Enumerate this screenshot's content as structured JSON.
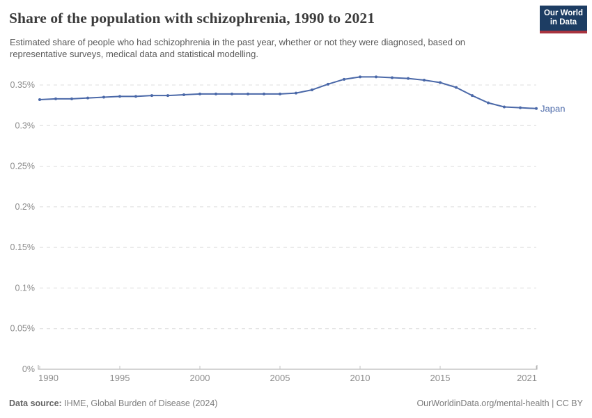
{
  "header": {
    "title": "Share of the population with schizophrenia, 1990 to 2021",
    "subtitle": "Estimated share of people who had schizophrenia in the past year, whether or not they were diagnosed, based on representative surveys, medical data and statistical modelling.",
    "logo": {
      "line1": "Our World",
      "line2": "in Data",
      "background_color": "#1d3d63",
      "stripe_color": "#a8333f"
    }
  },
  "chart_data": {
    "type": "line",
    "title": "Share of the population with schizophrenia, 1990 to 2021",
    "xlabel": "",
    "ylabel": "",
    "unit": "%",
    "grid": true,
    "legend_position": "end-of-line",
    "xlim": [
      1990,
      2021
    ],
    "ylim": [
      0,
      0.35
    ],
    "x": [
      1990,
      1991,
      1992,
      1993,
      1994,
      1995,
      1996,
      1997,
      1998,
      1999,
      2000,
      2001,
      2002,
      2003,
      2004,
      2005,
      2006,
      2007,
      2008,
      2009,
      2010,
      2011,
      2012,
      2013,
      2014,
      2015,
      2016,
      2017,
      2018,
      2019,
      2020,
      2021
    ],
    "series": [
      {
        "name": "Japan",
        "color": "#4a68a8",
        "values": [
          0.332,
          0.333,
          0.333,
          0.334,
          0.335,
          0.336,
          0.336,
          0.337,
          0.337,
          0.338,
          0.339,
          0.339,
          0.339,
          0.339,
          0.339,
          0.339,
          0.34,
          0.344,
          0.351,
          0.357,
          0.36,
          0.36,
          0.359,
          0.358,
          0.356,
          0.353,
          0.347,
          0.337,
          0.328,
          0.323,
          0.322,
          0.321
        ]
      }
    ],
    "yticks": [
      {
        "value": 0,
        "label": "0%"
      },
      {
        "value": 0.05,
        "label": "0.05%"
      },
      {
        "value": 0.1,
        "label": "0.1%"
      },
      {
        "value": 0.15,
        "label": "0.15%"
      },
      {
        "value": 0.2,
        "label": "0.2%"
      },
      {
        "value": 0.25,
        "label": "0.25%"
      },
      {
        "value": 0.3,
        "label": "0.3%"
      },
      {
        "value": 0.35,
        "label": "0.35%"
      }
    ],
    "xticks": [
      {
        "value": 1990,
        "label": "1990"
      },
      {
        "value": 1995,
        "label": "1995"
      },
      {
        "value": 2000,
        "label": "2000"
      },
      {
        "value": 2005,
        "label": "2005"
      },
      {
        "value": 2010,
        "label": "2010"
      },
      {
        "value": 2015,
        "label": "2015"
      },
      {
        "value": 2021,
        "label": "2021"
      }
    ],
    "colors": {
      "gridline": "#dcdcdc",
      "axis": "#a8a8a8",
      "tick": "#c2c2c2",
      "tick_label": "#8c8c8c"
    }
  },
  "footer": {
    "source_label": "Data source:",
    "source_value": " IHME, Global Burden of Disease (2024)",
    "attribution": "OurWorldinData.org/mental-health | CC BY"
  }
}
